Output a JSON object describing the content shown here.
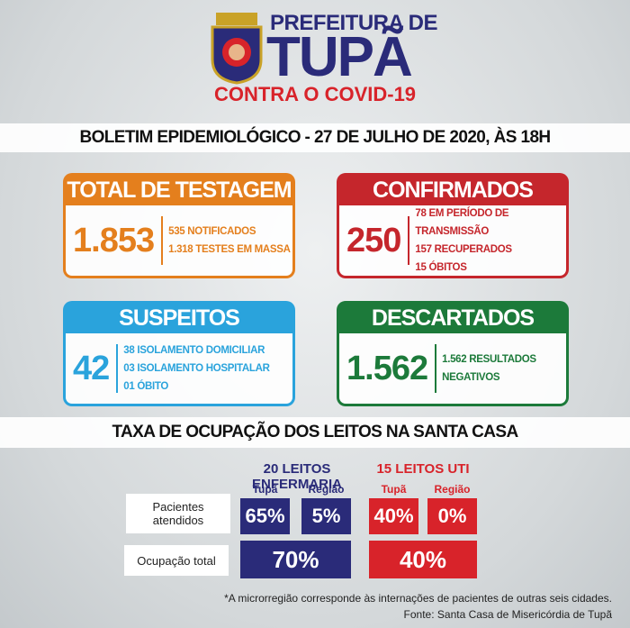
{
  "header": {
    "top": "PREFEITURA DE",
    "name": "TUPÃ",
    "campaign": "CONTRA O COVID-19"
  },
  "bulletin": "BOLETIM EPIDEMIOLÓGICO - 27 DE JULHO DE 2020, ÀS 18H",
  "cards": [
    {
      "title": "TOTAL DE TESTAGEM",
      "total": "1.853",
      "details": [
        "535 NOTIFICADOS",
        "1.318 TESTES EM MASSA"
      ]
    },
    {
      "title": "CONFIRMADOS",
      "total": "250",
      "details": [
        "78 EM PERÍODO DE TRANSMISSÃO",
        "157 RECUPERADOS",
        "15 ÓBITOS"
      ]
    },
    {
      "title": "SUSPEITOS",
      "total": "42",
      "details": [
        "38 ISOLAMENTO DOMICILIAR",
        "03 ISOLAMENTO HOSPITALAR",
        "01 ÓBITO"
      ]
    },
    {
      "title": "DESCARTADOS",
      "total": "1.562",
      "details": [
        "1.562 RESULTADOS NEGATIVOS"
      ]
    }
  ],
  "occupancy": {
    "title": "TAXA DE OCUPAÇÃO DOS LEITOS NA SANTA CASA",
    "groups": [
      {
        "title": "20 LEITOS ENFERMARIA",
        "columns": [
          "Tupã",
          "Região"
        ]
      },
      {
        "title": "15 LEITOS UTI",
        "columns": [
          "Tupã",
          "Região"
        ]
      }
    ],
    "rows": [
      {
        "label": "Pacientes atendidos",
        "values": [
          "65%",
          "5%",
          "40%",
          "0%"
        ]
      },
      {
        "label": "Ocupação total",
        "values": [
          "70%",
          "40%"
        ]
      }
    ]
  },
  "footnote": "*A microrregião corresponde às internações de pacientes de outras seis cidades.",
  "source": "Fonte: Santa Casa de Misericórdia de Tupã"
}
